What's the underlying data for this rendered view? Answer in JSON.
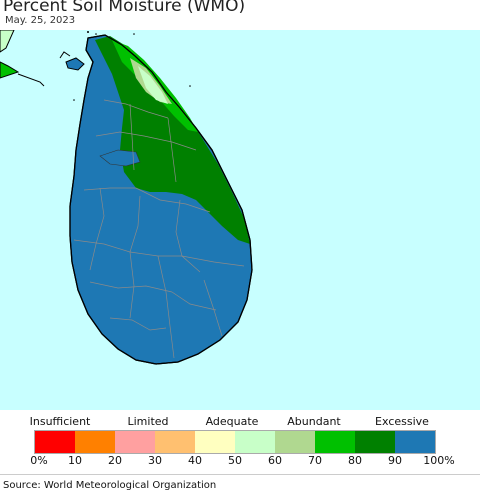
{
  "title": "Percent Soil Moisture (WMO)",
  "date": "May. 25, 2023",
  "legend": {
    "categories": [
      "Insufficient",
      "Limited",
      "Adequate",
      "Abundant",
      "Excessive"
    ],
    "ticks": [
      "0%",
      "10",
      "20",
      "30",
      "40",
      "50",
      "60",
      "70",
      "80",
      "90",
      "100%"
    ],
    "colors": [
      "#ff0000",
      "#ff8000",
      "#ffa0a0",
      "#ffc070",
      "#ffffc0",
      "#c8ffc8",
      "#b0d890",
      "#00c000",
      "#008000",
      "#1e78b4"
    ]
  },
  "map_colors": {
    "ocean": "#c8ffff",
    "excessive": "#1e78b4",
    "wet": "#008000",
    "moist": "#00c000",
    "abundant": "#b0d890",
    "adequate": "#c8ffc8"
  },
  "source": "Source: World Meteorological Organization"
}
